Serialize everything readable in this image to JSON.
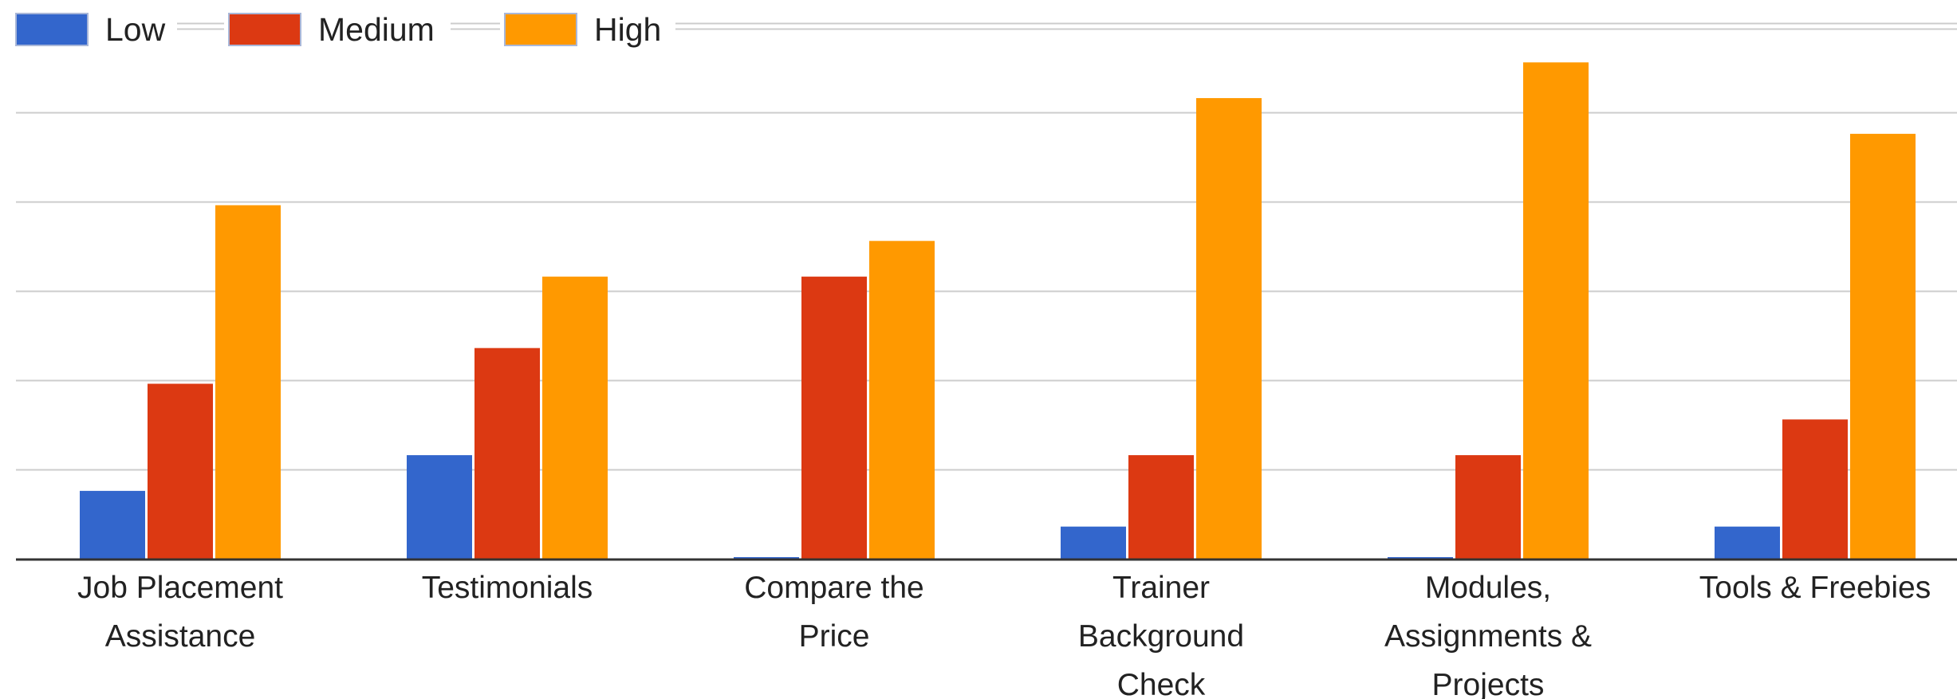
{
  "chart_data": {
    "type": "bar",
    "categories": [
      [
        "Job Placement",
        "Assistance"
      ],
      [
        "Testimonials"
      ],
      [
        "Compare the",
        "Price"
      ],
      [
        "Trainer",
        "Background",
        "Check"
      ],
      [
        "Modules,",
        "Assignments &",
        "Projects"
      ],
      [
        "Tools & Freebies"
      ]
    ],
    "series": [
      {
        "name": "Low",
        "color": "#3366cc",
        "values": [
          1.9,
          2.9,
          0,
          0.9,
          0,
          0.9
        ]
      },
      {
        "name": "Medium",
        "color": "#dc3912",
        "values": [
          4.9,
          5.9,
          7.9,
          2.9,
          2.9,
          3.9
        ]
      },
      {
        "name": "High",
        "color": "#ff9900",
        "values": [
          9.9,
          7.9,
          8.9,
          12.9,
          13.9,
          11.9
        ]
      }
    ],
    "ylim": [
      0,
      15
    ],
    "ytick_step": 2.5,
    "grid": true,
    "legend_position": "top"
  }
}
